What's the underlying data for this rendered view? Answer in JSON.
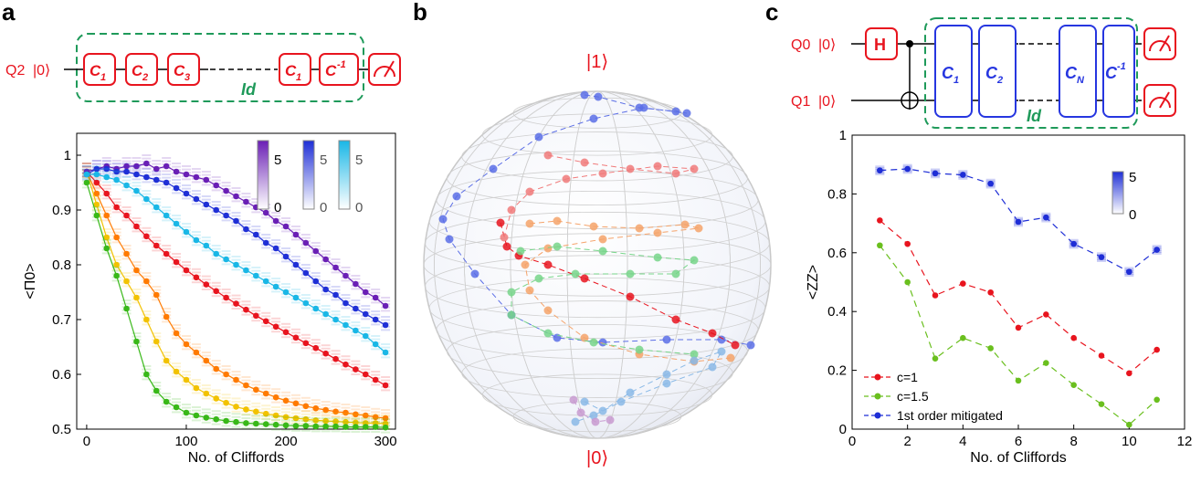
{
  "panels": {
    "a": {
      "letter": "a",
      "circuit": {
        "qubit": "Q2",
        "init": "|0⟩",
        "gates": [
          "C1",
          "C2",
          "C3",
          "C1",
          "C-1"
        ],
        "id_label": "Id"
      },
      "colorbars": [
        {
          "max": "5",
          "min": "0"
        },
        {
          "max": "5",
          "min": "0"
        },
        {
          "max": "5",
          "min": "0"
        }
      ]
    },
    "b": {
      "letter": "b",
      "top_label": "|1⟩",
      "bottom_label": "|0⟩"
    },
    "c": {
      "letter": "c",
      "circuit": {
        "q0": "Q0",
        "q1": "Q1",
        "init": "|0⟩",
        "h": "H",
        "gates": [
          "C1",
          "C2",
          "CN",
          "C-1"
        ],
        "id_label": "Id"
      },
      "colorbar": {
        "max": "5",
        "min": "0"
      }
    }
  },
  "chart_data": [
    {
      "type": "line",
      "panel": "a",
      "title": "",
      "xlabel": "No. of Cliffords",
      "ylabel": "<Π0>",
      "xlim": [
        -10,
        310
      ],
      "ylim": [
        0.5,
        1.04
      ],
      "xticks": [
        0,
        100,
        200,
        300
      ],
      "yticks": [
        0.5,
        0.6,
        0.7,
        0.8,
        0.9,
        1
      ],
      "grid": false,
      "series": [
        {
          "color": "#e8141e",
          "x": [
            0,
            10,
            20,
            30,
            40,
            50,
            60,
            70,
            80,
            90,
            100,
            110,
            120,
            130,
            140,
            150,
            160,
            170,
            180,
            190,
            200,
            210,
            220,
            230,
            240,
            250,
            260,
            270,
            280,
            290,
            300
          ],
          "y": [
            0.97,
            0.95,
            0.93,
            0.905,
            0.89,
            0.87,
            0.852,
            0.835,
            0.82,
            0.805,
            0.79,
            0.777,
            0.764,
            0.752,
            0.74,
            0.729,
            0.718,
            0.707,
            0.697,
            0.687,
            0.677,
            0.667,
            0.657,
            0.648,
            0.638,
            0.628,
            0.618,
            0.609,
            0.6,
            0.59,
            0.58
          ]
        },
        {
          "color": "#ff7a00",
          "x": [
            0,
            10,
            20,
            30,
            40,
            50,
            60,
            70,
            80,
            90,
            100,
            110,
            120,
            130,
            140,
            150,
            160,
            170,
            180,
            190,
            200,
            210,
            220,
            230,
            240,
            250,
            260,
            270,
            280,
            290,
            300
          ],
          "y": [
            0.97,
            0.93,
            0.89,
            0.85,
            0.82,
            0.79,
            0.77,
            0.745,
            0.705,
            0.675,
            0.655,
            0.64,
            0.625,
            0.61,
            0.6,
            0.59,
            0.58,
            0.572,
            0.565,
            0.558,
            0.552,
            0.547,
            0.542,
            0.538,
            0.535,
            0.532,
            0.53,
            0.527,
            0.525,
            0.522,
            0.52
          ]
        },
        {
          "color": "#f2c200",
          "x": [
            0,
            10,
            20,
            30,
            40,
            50,
            60,
            70,
            80,
            90,
            100,
            110,
            120,
            130,
            140,
            150,
            160,
            170,
            180,
            190,
            200,
            210,
            220,
            230,
            240,
            250,
            260,
            270,
            280,
            290,
            300
          ],
          "y": [
            0.97,
            0.91,
            0.85,
            0.8,
            0.77,
            0.74,
            0.7,
            0.66,
            0.625,
            0.605,
            0.59,
            0.575,
            0.565,
            0.556,
            0.548,
            0.541,
            0.536,
            0.532,
            0.528,
            0.525,
            0.522,
            0.52,
            0.518,
            0.516,
            0.515,
            0.514,
            0.513,
            0.512,
            0.511,
            0.511,
            0.51
          ]
        },
        {
          "color": "#38b818",
          "x": [
            0,
            10,
            20,
            30,
            40,
            50,
            60,
            70,
            80,
            90,
            100,
            110,
            120,
            130,
            140,
            150,
            160,
            170,
            180,
            190,
            200,
            210,
            220,
            230,
            240,
            250,
            260,
            270,
            280,
            290,
            300
          ],
          "y": [
            0.95,
            0.89,
            0.83,
            0.78,
            0.72,
            0.66,
            0.6,
            0.57,
            0.55,
            0.54,
            0.53,
            0.525,
            0.521,
            0.518,
            0.515,
            0.513,
            0.511,
            0.51,
            0.509,
            0.508,
            0.507,
            0.506,
            0.506,
            0.505,
            0.505,
            0.505,
            0.504,
            0.504,
            0.504,
            0.504,
            0.503
          ]
        },
        {
          "color": "#6a1fb5",
          "x": [
            0,
            10,
            20,
            30,
            40,
            50,
            60,
            70,
            80,
            90,
            100,
            110,
            120,
            130,
            140,
            150,
            160,
            170,
            180,
            190,
            200,
            210,
            220,
            230,
            240,
            250,
            260,
            270,
            280,
            290,
            300
          ],
          "y": [
            0.97,
            0.975,
            0.98,
            0.975,
            0.98,
            0.98,
            0.985,
            0.975,
            0.98,
            0.97,
            0.965,
            0.96,
            0.955,
            0.945,
            0.935,
            0.925,
            0.915,
            0.905,
            0.895,
            0.88,
            0.87,
            0.855,
            0.84,
            0.825,
            0.81,
            0.795,
            0.78,
            0.765,
            0.75,
            0.74,
            0.725
          ]
        },
        {
          "color": "#1f2fd6",
          "x": [
            0,
            10,
            20,
            30,
            40,
            50,
            60,
            70,
            80,
            90,
            100,
            110,
            120,
            130,
            140,
            150,
            160,
            170,
            180,
            190,
            200,
            210,
            220,
            230,
            240,
            250,
            260,
            270,
            280,
            290,
            300
          ],
          "y": [
            0.965,
            0.975,
            0.975,
            0.97,
            0.97,
            0.965,
            0.96,
            0.955,
            0.95,
            0.94,
            0.93,
            0.92,
            0.91,
            0.9,
            0.89,
            0.88,
            0.865,
            0.855,
            0.84,
            0.83,
            0.815,
            0.8,
            0.785,
            0.77,
            0.755,
            0.745,
            0.73,
            0.72,
            0.71,
            0.7,
            0.69
          ]
        },
        {
          "color": "#19b7e6",
          "x": [
            0,
            10,
            20,
            30,
            40,
            50,
            60,
            70,
            80,
            90,
            100,
            110,
            120,
            130,
            140,
            150,
            160,
            170,
            180,
            190,
            200,
            210,
            220,
            230,
            240,
            250,
            260,
            270,
            280,
            290,
            300
          ],
          "y": [
            0.965,
            0.965,
            0.96,
            0.955,
            0.945,
            0.935,
            0.92,
            0.905,
            0.89,
            0.875,
            0.86,
            0.845,
            0.835,
            0.82,
            0.81,
            0.8,
            0.79,
            0.78,
            0.77,
            0.76,
            0.75,
            0.74,
            0.73,
            0.72,
            0.71,
            0.7,
            0.69,
            0.68,
            0.67,
            0.655,
            0.64
          ]
        }
      ]
    },
    {
      "type": "line",
      "panel": "c",
      "title": "",
      "xlabel": "No. of Cliffords",
      "ylabel": "<ZZ>",
      "xlim": [
        0,
        12
      ],
      "ylim": [
        0,
        1
      ],
      "xticks": [
        0,
        2,
        4,
        6,
        8,
        10,
        12
      ],
      "yticks": [
        0,
        0.2,
        0.4,
        0.6,
        0.8,
        1
      ],
      "grid": false,
      "legend_position": "bottom-left",
      "series": [
        {
          "name": "c=1",
          "color": "#e8141e",
          "x": [
            1,
            2,
            3,
            4,
            5,
            6,
            7,
            8,
            9,
            10,
            11
          ],
          "y": [
            0.71,
            0.63,
            0.455,
            0.495,
            0.465,
            0.345,
            0.39,
            0.31,
            0.25,
            0.19,
            0.27
          ]
        },
        {
          "name": "c=1.5",
          "color": "#6abf1e",
          "x": [
            1,
            2,
            3,
            4,
            5,
            6,
            7,
            8,
            9,
            10,
            11
          ],
          "y": [
            0.625,
            0.5,
            0.24,
            0.31,
            0.275,
            0.165,
            0.225,
            0.15,
            0.085,
            0.015,
            0.1
          ]
        },
        {
          "name": "1st order mitigated",
          "color": "#1f2fd6",
          "x": [
            1,
            2,
            3,
            4,
            5,
            6,
            7,
            8,
            9,
            10,
            11
          ],
          "y": [
            0.88,
            0.885,
            0.87,
            0.865,
            0.835,
            0.705,
            0.72,
            0.63,
            0.585,
            0.535,
            0.61
          ]
        }
      ]
    }
  ]
}
